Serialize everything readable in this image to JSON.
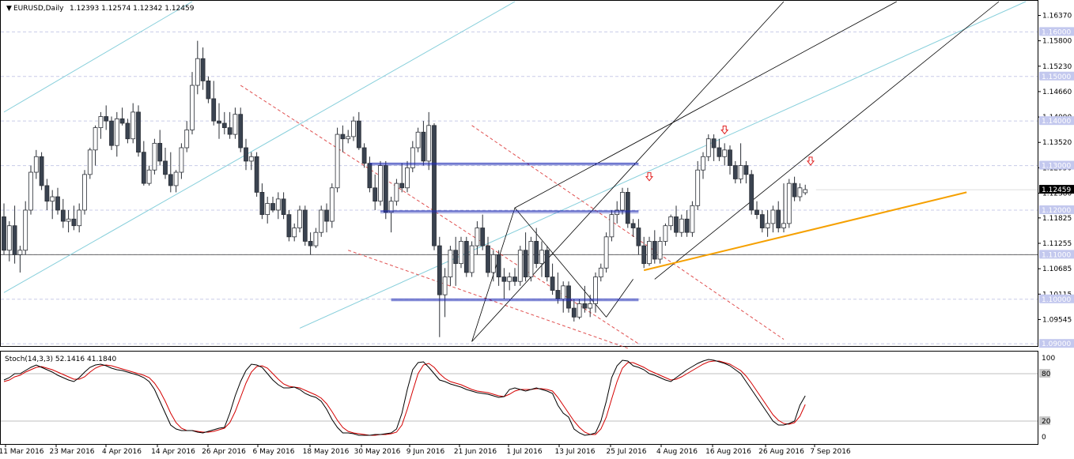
{
  "header": {
    "menu_icon": "triangle-down-icon",
    "symbol": "EURUSD,Daily",
    "ohlc": "1.12393 1.12574 1.12342 1.12459"
  },
  "indicator": {
    "label": "Stoch(14,3,3) 52.1416 41.1840",
    "levels": [
      "100",
      "80",
      "20",
      "0"
    ]
  },
  "colors": {
    "up_candle": "#ffffff",
    "down_candle": "#3a4350",
    "grid": "#c8cbe8",
    "channel": "#000000",
    "fib_lines": "#87cfdb",
    "support_line": "#f5a000",
    "horizontal_levels": "#1f2bb4",
    "arrows": "#e02020",
    "stoch_main": "#000000",
    "stoch_signal": "#d40000"
  },
  "chart_data": {
    "type": "candlestick",
    "title": "EURUSD,Daily",
    "ylim": [
      1.0895,
      1.1668
    ],
    "grid": true,
    "y_ticks": [
      "1.16370",
      "1.15800",
      "1.15230",
      "1.14660",
      "1.14090",
      "1.13520",
      "1.12950",
      "1.12380",
      "1.11825",
      "1.11255",
      "1.10685",
      "1.10115",
      "1.09545"
    ],
    "level_labels": [
      "1.16000",
      "1.15000",
      "1.14000",
      "1.13000",
      "1.12000",
      "1.11000",
      "1.10000",
      "1.09000"
    ],
    "current_price": "1.12459",
    "x_labels": [
      "11 Mar 2016",
      "23 Mar 2016",
      "4 Apr 2016",
      "14 Apr 2016",
      "26 Apr 2016",
      "6 May 2016",
      "18 May 2016",
      "30 May 2016",
      "9 Jun 2016",
      "21 Jun 2016",
      "1 Jul 2016",
      "13 Jul 2016",
      "25 Jul 2016",
      "4 Aug 2016",
      "16 Aug 2016",
      "26 Aug 2016",
      "7 Sep 2016"
    ],
    "candles": [
      [
        1.1185,
        1.1215,
        1.11,
        1.111
      ],
      [
        1.111,
        1.1175,
        1.1085,
        1.1165
      ],
      [
        1.1165,
        1.121,
        1.108,
        1.11
      ],
      [
        1.11,
        1.112,
        1.106,
        1.111
      ],
      [
        1.111,
        1.122,
        1.11,
        1.12
      ],
      [
        1.12,
        1.13,
        1.119,
        1.1285
      ],
      [
        1.1285,
        1.1335,
        1.127,
        1.132
      ],
      [
        1.132,
        1.133,
        1.1245,
        1.1255
      ],
      [
        1.1255,
        1.127,
        1.12,
        1.122
      ],
      [
        1.122,
        1.1245,
        1.118,
        1.123
      ],
      [
        1.123,
        1.125,
        1.119,
        1.12
      ],
      [
        1.12,
        1.1225,
        1.116,
        1.1175
      ],
      [
        1.1175,
        1.12,
        1.115,
        1.118
      ],
      [
        1.118,
        1.121,
        1.1155,
        1.1165
      ],
      [
        1.1165,
        1.1215,
        1.115,
        1.12
      ],
      [
        1.12,
        1.129,
        1.119,
        1.128
      ],
      [
        1.128,
        1.134,
        1.127,
        1.1335
      ],
      [
        1.1335,
        1.139,
        1.13,
        1.1385
      ],
      [
        1.1385,
        1.142,
        1.136,
        1.141
      ],
      [
        1.141,
        1.1435,
        1.138,
        1.14
      ],
      [
        1.14,
        1.141,
        1.1335,
        1.1345
      ],
      [
        1.1345,
        1.142,
        1.132,
        1.1405
      ],
      [
        1.1405,
        1.143,
        1.139,
        1.1395
      ],
      [
        1.1395,
        1.1405,
        1.135,
        1.136
      ],
      [
        1.136,
        1.144,
        1.135,
        1.142
      ],
      [
        1.142,
        1.1435,
        1.132,
        1.133
      ],
      [
        1.133,
        1.1355,
        1.1255,
        1.126
      ],
      [
        1.126,
        1.13,
        1.1255,
        1.129
      ],
      [
        1.129,
        1.136,
        1.128,
        1.135
      ],
      [
        1.135,
        1.138,
        1.13,
        1.131
      ],
      [
        1.131,
        1.134,
        1.127,
        1.128
      ],
      [
        1.128,
        1.133,
        1.124,
        1.1255
      ],
      [
        1.1255,
        1.129,
        1.124,
        1.1285
      ],
      [
        1.1285,
        1.135,
        1.127,
        1.134
      ],
      [
        1.134,
        1.14,
        1.133,
        1.138
      ],
      [
        1.138,
        1.151,
        1.137,
        1.148
      ],
      [
        1.148,
        1.158,
        1.146,
        1.154
      ],
      [
        1.154,
        1.1565,
        1.147,
        1.149
      ],
      [
        1.149,
        1.15,
        1.144,
        1.145
      ],
      [
        1.145,
        1.149,
        1.139,
        1.14
      ],
      [
        1.14,
        1.144,
        1.136,
        1.1395
      ],
      [
        1.1395,
        1.142,
        1.137,
        1.1385
      ],
      [
        1.1385,
        1.142,
        1.136,
        1.137
      ],
      [
        1.137,
        1.143,
        1.136,
        1.1415
      ],
      [
        1.1415,
        1.143,
        1.133,
        1.134
      ],
      [
        1.134,
        1.136,
        1.129,
        1.131
      ],
      [
        1.131,
        1.133,
        1.129,
        1.132
      ],
      [
        1.132,
        1.133,
        1.123,
        1.124
      ],
      [
        1.124,
        1.126,
        1.118,
        1.119
      ],
      [
        1.119,
        1.123,
        1.117,
        1.1215
      ],
      [
        1.1215,
        1.123,
        1.1195,
        1.12
      ],
      [
        1.12,
        1.124,
        1.118,
        1.1225
      ],
      [
        1.1225,
        1.124,
        1.118,
        1.119
      ],
      [
        1.119,
        1.12,
        1.113,
        1.114
      ],
      [
        1.114,
        1.117,
        1.113,
        1.116
      ],
      [
        1.116,
        1.121,
        1.115,
        1.12
      ],
      [
        1.12,
        1.121,
        1.112,
        1.113
      ],
      [
        1.113,
        1.115,
        1.11,
        1.112
      ],
      [
        1.112,
        1.116,
        1.1115,
        1.115
      ],
      [
        1.115,
        1.121,
        1.114,
        1.12
      ],
      [
        1.12,
        1.1215,
        1.115,
        1.1175
      ],
      [
        1.1175,
        1.126,
        1.116,
        1.125
      ],
      [
        1.125,
        1.1385,
        1.124,
        1.137
      ],
      [
        1.137,
        1.139,
        1.133,
        1.136
      ],
      [
        1.136,
        1.138,
        1.135,
        1.1365
      ],
      [
        1.1365,
        1.141,
        1.1355,
        1.14
      ],
      [
        1.14,
        1.142,
        1.1335,
        1.134
      ],
      [
        1.134,
        1.135,
        1.1295,
        1.1305
      ],
      [
        1.1305,
        1.132,
        1.124,
        1.125
      ],
      [
        1.125,
        1.128,
        1.12,
        1.122
      ],
      [
        1.122,
        1.131,
        1.121,
        1.13
      ],
      [
        1.13,
        1.131,
        1.118,
        1.1195
      ],
      [
        1.1195,
        1.123,
        1.115,
        1.122
      ],
      [
        1.122,
        1.127,
        1.121,
        1.126
      ],
      [
        1.126,
        1.1305,
        1.124,
        1.125
      ],
      [
        1.125,
        1.131,
        1.124,
        1.1295
      ],
      [
        1.1295,
        1.1355,
        1.1285,
        1.134
      ],
      [
        1.134,
        1.1385,
        1.133,
        1.1375
      ],
      [
        1.1375,
        1.14,
        1.13,
        1.131
      ],
      [
        1.131,
        1.142,
        1.129,
        1.139
      ],
      [
        1.139,
        1.1395,
        1.111,
        1.112
      ],
      [
        1.112,
        1.114,
        1.0915,
        1.101
      ],
      [
        1.101,
        1.107,
        1.096,
        1.105
      ],
      [
        1.105,
        1.112,
        1.103,
        1.111
      ],
      [
        1.111,
        1.114,
        1.103,
        1.108
      ],
      [
        1.108,
        1.114,
        1.107,
        1.113
      ],
      [
        1.113,
        1.114,
        1.105,
        1.106
      ],
      [
        1.106,
        1.113,
        1.105,
        1.112
      ],
      [
        1.112,
        1.1175,
        1.11,
        1.116
      ],
      [
        1.116,
        1.119,
        1.111,
        1.112
      ],
      [
        1.112,
        1.114,
        1.105,
        1.106
      ],
      [
        1.106,
        1.111,
        1.104,
        1.11
      ],
      [
        1.11,
        1.111,
        1.103,
        1.105
      ],
      [
        1.105,
        1.107,
        1.1,
        1.104
      ],
      [
        1.104,
        1.106,
        1.102,
        1.105
      ],
      [
        1.105,
        1.107,
        1.103,
        1.104
      ],
      [
        1.104,
        1.112,
        1.103,
        1.111
      ],
      [
        1.111,
        1.115,
        1.104,
        1.105
      ],
      [
        1.105,
        1.114,
        1.104,
        1.113
      ],
      [
        1.113,
        1.116,
        1.107,
        1.108
      ],
      [
        1.108,
        1.113,
        1.105,
        1.111
      ],
      [
        1.111,
        1.112,
        1.104,
        1.105
      ],
      [
        1.105,
        1.108,
        1.101,
        1.102
      ],
      [
        1.102,
        1.106,
        1.099,
        1.1
      ],
      [
        1.1,
        1.104,
        1.097,
        1.103
      ],
      [
        1.103,
        1.104,
        1.097,
        1.098
      ],
      [
        1.098,
        1.1,
        1.095,
        1.096
      ],
      [
        1.096,
        1.1,
        1.0955,
        1.099
      ],
      [
        1.099,
        1.103,
        1.097,
        1.098
      ],
      [
        1.098,
        1.101,
        1.096,
        1.099
      ],
      [
        1.099,
        1.106,
        1.097,
        1.105
      ],
      [
        1.105,
        1.108,
        1.104,
        1.107
      ],
      [
        1.107,
        1.115,
        1.106,
        1.114
      ],
      [
        1.114,
        1.12,
        1.113,
        1.119
      ],
      [
        1.119,
        1.122,
        1.117,
        1.12
      ],
      [
        1.12,
        1.125,
        1.119,
        1.124
      ],
      [
        1.124,
        1.125,
        1.116,
        1.117
      ],
      [
        1.117,
        1.118,
        1.114,
        1.116
      ],
      [
        1.116,
        1.118,
        1.11,
        1.112
      ],
      [
        1.112,
        1.114,
        1.107,
        1.108
      ],
      [
        1.108,
        1.114,
        1.1075,
        1.113
      ],
      [
        1.113,
        1.1155,
        1.108,
        1.109
      ],
      [
        1.109,
        1.114,
        1.108,
        1.113
      ],
      [
        1.113,
        1.117,
        1.112,
        1.1165
      ],
      [
        1.1165,
        1.119,
        1.1155,
        1.1185
      ],
      [
        1.1185,
        1.121,
        1.114,
        1.115
      ],
      [
        1.115,
        1.119,
        1.114,
        1.118
      ],
      [
        1.118,
        1.12,
        1.114,
        1.115
      ],
      [
        1.115,
        1.122,
        1.114,
        1.121
      ],
      [
        1.121,
        1.131,
        1.12,
        1.129
      ],
      [
        1.129,
        1.133,
        1.127,
        1.132
      ],
      [
        1.132,
        1.137,
        1.131,
        1.136
      ],
      [
        1.136,
        1.137,
        1.131,
        1.134
      ],
      [
        1.134,
        1.136,
        1.131,
        1.132
      ],
      [
        1.132,
        1.135,
        1.13,
        1.1335
      ],
      [
        1.1335,
        1.1345,
        1.128,
        1.13
      ],
      [
        1.13,
        1.131,
        1.126,
        1.127
      ],
      [
        1.127,
        1.135,
        1.126,
        1.13
      ],
      [
        1.13,
        1.131,
        1.126,
        1.128
      ],
      [
        1.128,
        1.129,
        1.119,
        1.12
      ],
      [
        1.12,
        1.122,
        1.118,
        1.119
      ],
      [
        1.119,
        1.12,
        1.115,
        1.116
      ],
      [
        1.116,
        1.12,
        1.114,
        1.117
      ],
      [
        1.117,
        1.121,
        1.115,
        1.12
      ],
      [
        1.12,
        1.122,
        1.115,
        1.116
      ],
      [
        1.116,
        1.126,
        1.115,
        1.117
      ],
      [
        1.117,
        1.127,
        1.116,
        1.126
      ],
      [
        1.126,
        1.1275,
        1.122,
        1.123
      ],
      [
        1.123,
        1.126,
        1.122,
        1.125
      ],
      [
        1.1239,
        1.1257,
        1.1234,
        1.1246
      ]
    ],
    "stoch_main": [
      72,
      75,
      80,
      80,
      84,
      88,
      91,
      88,
      85,
      82,
      78,
      75,
      72,
      70,
      75,
      82,
      88,
      91,
      92,
      90,
      87,
      85,
      84,
      82,
      80,
      78,
      75,
      70,
      60,
      45,
      30,
      15,
      10,
      8,
      8,
      8,
      6,
      5,
      7,
      9,
      11,
      12,
      30,
      52,
      70,
      84,
      92,
      91,
      88,
      80,
      72,
      66,
      62,
      62,
      63,
      60,
      55,
      52,
      50,
      45,
      35,
      22,
      12,
      5,
      5,
      4,
      2,
      2,
      2,
      3,
      3,
      4,
      5,
      10,
      30,
      60,
      85,
      94,
      95,
      88,
      80,
      72,
      70,
      67,
      65,
      63,
      60,
      58,
      56,
      55,
      54,
      52,
      50,
      51,
      60,
      62,
      60,
      58,
      60,
      62,
      60,
      58,
      55,
      40,
      30,
      25,
      10,
      5,
      2,
      3,
      5,
      20,
      45,
      75,
      90,
      97,
      96,
      90,
      88,
      85,
      80,
      78,
      75,
      72,
      70,
      75,
      80,
      85,
      89,
      93,
      96,
      98,
      97,
      95,
      93,
      90,
      85,
      80,
      70,
      60,
      50,
      40,
      30,
      20,
      15,
      15,
      17,
      20,
      40,
      52
    ],
    "stoch_signal": [
      70,
      72,
      76,
      78,
      82,
      85,
      88,
      89,
      87,
      85,
      82,
      79,
      76,
      73,
      73,
      76,
      82,
      87,
      90,
      91,
      90,
      88,
      86,
      84,
      82,
      80,
      78,
      75,
      68,
      58,
      45,
      30,
      18,
      11,
      8,
      8,
      7,
      6,
      6,
      7,
      9,
      11,
      18,
      32,
      50,
      68,
      82,
      89,
      90,
      87,
      80,
      73,
      67,
      64,
      63,
      62,
      59,
      56,
      53,
      49,
      42,
      32,
      21,
      12,
      7,
      5,
      4,
      3,
      2,
      2,
      3,
      3,
      4,
      6,
      15,
      35,
      58,
      80,
      91,
      93,
      88,
      80,
      74,
      70,
      68,
      66,
      63,
      60,
      58,
      57,
      56,
      54,
      52,
      51,
      54,
      58,
      60,
      60,
      60,
      61,
      61,
      60,
      58,
      50,
      40,
      30,
      20,
      12,
      6,
      3,
      3,
      10,
      25,
      48,
      70,
      87,
      94,
      94,
      91,
      88,
      84,
      81,
      78,
      75,
      72,
      73,
      76,
      80,
      84,
      88,
      92,
      95,
      96,
      96,
      94,
      92,
      88,
      84,
      77,
      68,
      58,
      48,
      38,
      28,
      21,
      17,
      16,
      18,
      26,
      41
    ]
  }
}
